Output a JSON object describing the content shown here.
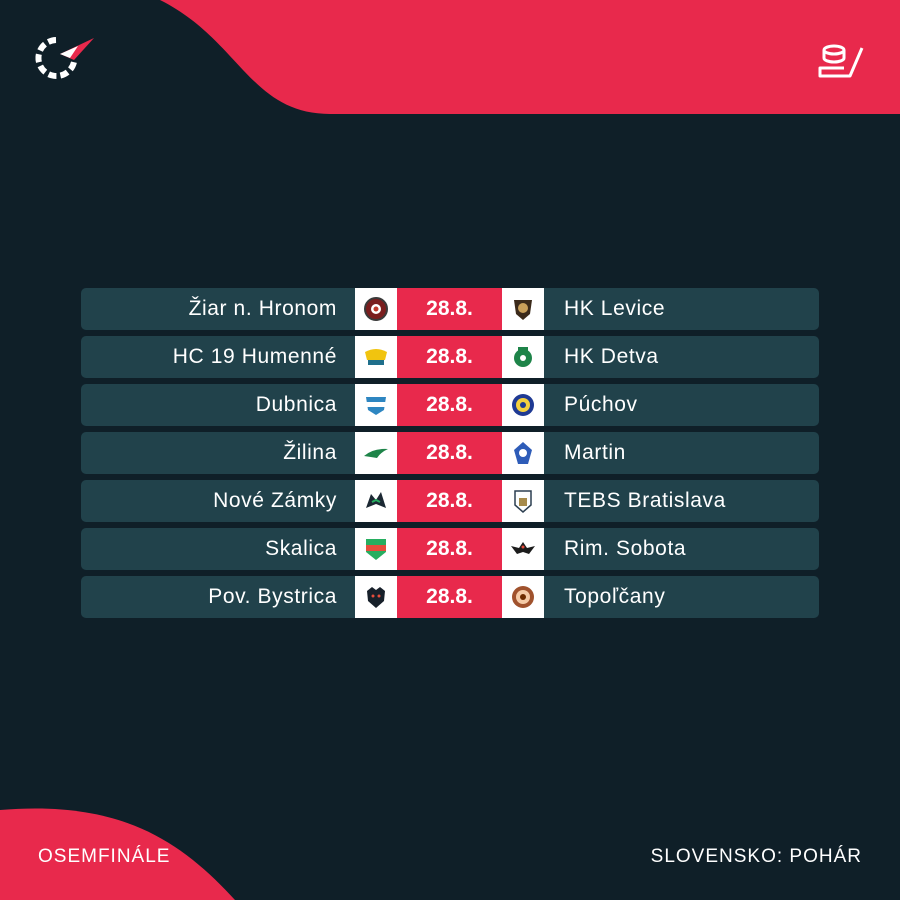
{
  "colors": {
    "background": "#0f1f28",
    "accent": "#e8294c",
    "row": "#21424b"
  },
  "header": {
    "brand_icon": "flashscore-logo-icon",
    "sport_icon": "ice-hockey-icon"
  },
  "matches": [
    {
      "home": "Žiar n. Hronom",
      "date": "28.8.",
      "away": "HK Levice",
      "home_logo_icon": "ziar-crest-icon",
      "away_logo_icon": "levice-crest-icon"
    },
    {
      "home": "HC 19 Humenné",
      "date": "28.8.",
      "away": "HK Detva",
      "home_logo_icon": "humenne-crest-icon",
      "away_logo_icon": "detva-crest-icon"
    },
    {
      "home": "Dubnica",
      "date": "28.8.",
      "away": "Púchov",
      "home_logo_icon": "dubnica-crest-icon",
      "away_logo_icon": "puchov-crest-icon"
    },
    {
      "home": "Žilina",
      "date": "28.8.",
      "away": "Martin",
      "home_logo_icon": "zilina-crest-icon",
      "away_logo_icon": "martin-crest-icon"
    },
    {
      "home": "Nové Zámky",
      "date": "28.8.",
      "away": "TEBS Bratislava",
      "home_logo_icon": "nove-zamky-crest-icon",
      "away_logo_icon": "tebs-crest-icon"
    },
    {
      "home": "Skalica",
      "date": "28.8.",
      "away": "Rim. Sobota",
      "home_logo_icon": "skalica-crest-icon",
      "away_logo_icon": "rim-sobota-crest-icon"
    },
    {
      "home": "Pov. Bystrica",
      "date": "28.8.",
      "away": "Topoľčany",
      "home_logo_icon": "pov-bystrica-crest-icon",
      "away_logo_icon": "topolcany-crest-icon"
    }
  ],
  "footer": {
    "stage": "OSEMFINÁLE",
    "competition": "SLOVENSKO: POHÁR"
  }
}
